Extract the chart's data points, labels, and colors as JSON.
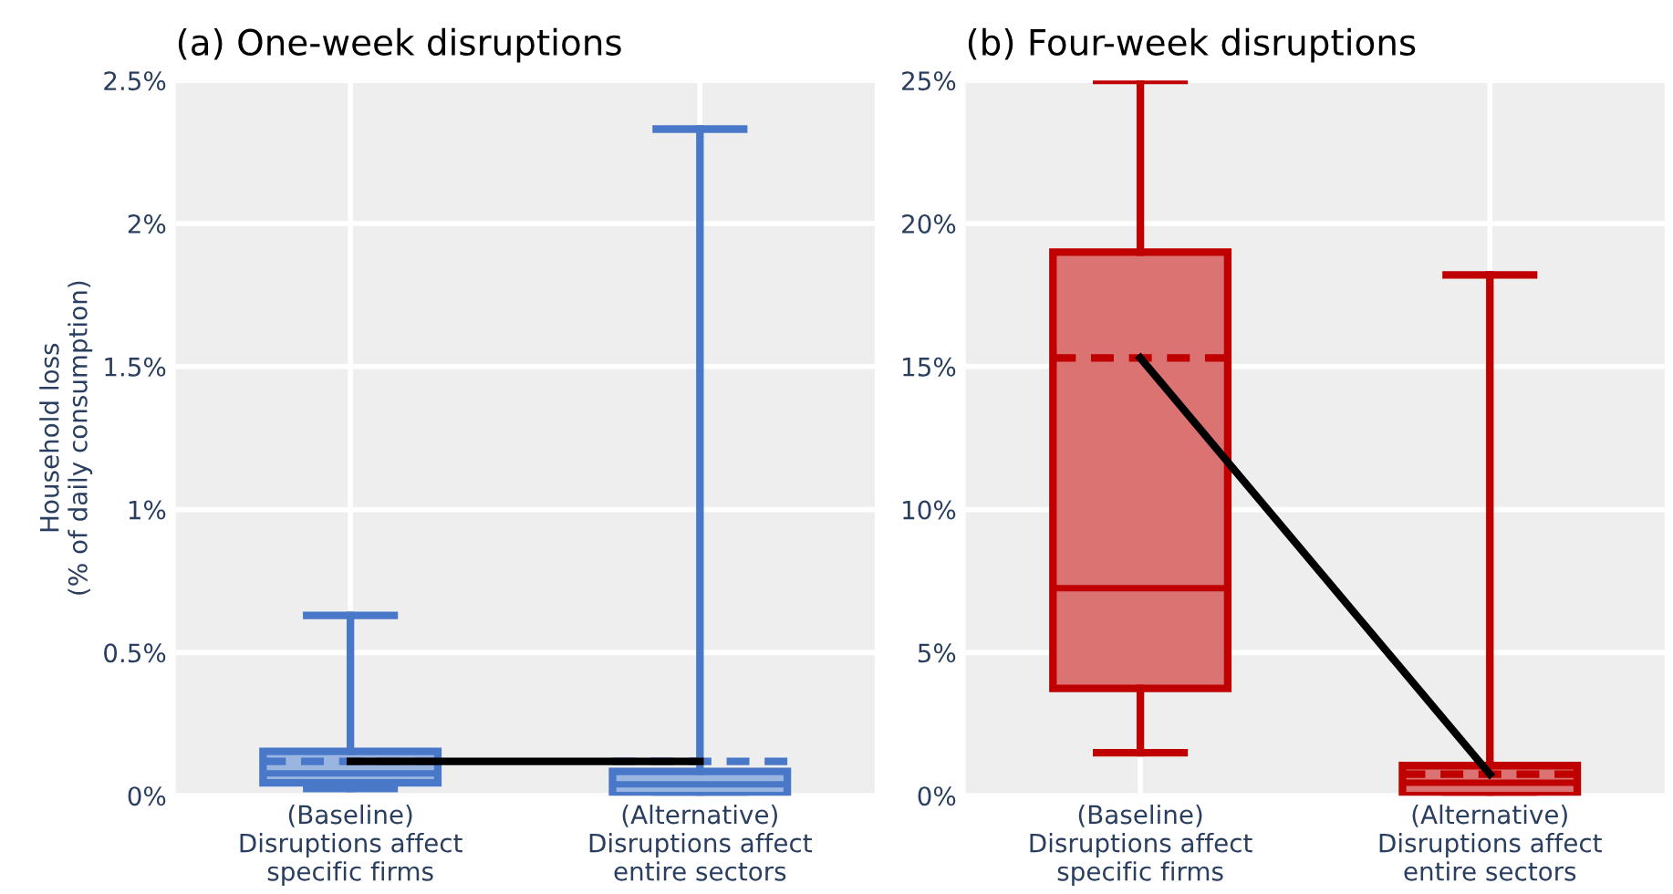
{
  "chart_data": [
    {
      "type": "box",
      "title": "(a) One-week disruptions",
      "ylabel": "Household loss\n(% of daily consumption)",
      "categories": [
        "(Baseline)\nDisruptions affect\nspecific firms",
        "(Alternative)\nDisruptions affect\nentire sectors"
      ],
      "boxes": [
        {
          "low": 0.025,
          "q1": 0.045,
          "median": 0.078,
          "q3": 0.155,
          "high": 0.63,
          "mean": 0.12
        },
        {
          "low": 0,
          "q1": 0,
          "median": 0.04,
          "q3": 0.085,
          "high": 2.33,
          "mean": 0.12
        }
      ],
      "colors": [
        "#4a78c8",
        "#4a78c8"
      ],
      "series": [
        {
          "type": "line",
          "x": [
            "(Baseline)\nDisruptions affect\nspecific firms",
            "(Alternative)\nDisruptions affect\nentire sectors"
          ],
          "values": [
            0.12,
            0.12
          ],
          "color": "#000000"
        }
      ],
      "ylim": [
        0,
        2.5
      ],
      "yticks": [
        {
          "value": 0,
          "label": "0%"
        },
        {
          "value": 0.5,
          "label": "0.5%"
        },
        {
          "value": 1,
          "label": "1%"
        },
        {
          "value": 1.5,
          "label": "1.5%"
        },
        {
          "value": 2,
          "label": "2%"
        },
        {
          "value": 2.5,
          "label": "2.5%"
        }
      ],
      "grid": true
    },
    {
      "type": "box",
      "title": "(b) Four-week disruptions",
      "categories": [
        "(Baseline)\nDisruptions affect\nspecific firms",
        "(Alternative)\nDisruptions affect\nentire sectors"
      ],
      "boxes": [
        {
          "low": 1.5,
          "q1": 3.75,
          "median": 7.25,
          "q3": 19.0,
          "high": 25,
          "mean": 15.3
        },
        {
          "low": 0,
          "q1": 0,
          "median": 0.45,
          "q3": 1.05,
          "high": 18.2,
          "mean": 0.75
        }
      ],
      "colors": [
        "#c00000",
        "#c00000"
      ],
      "series": [
        {
          "type": "line",
          "x": [
            "(Baseline)\nDisruptions affect\nspecific firms",
            "(Alternative)\nDisruptions affect\nentire sectors"
          ],
          "values": [
            15.3,
            0.75
          ],
          "color": "#000000"
        }
      ],
      "ylim": [
        0,
        25
      ],
      "yticks": [
        {
          "value": 0,
          "label": "0%"
        },
        {
          "value": 5,
          "label": "5%"
        },
        {
          "value": 10,
          "label": "10%"
        },
        {
          "value": 15,
          "label": "15%"
        },
        {
          "value": 20,
          "label": "20%"
        },
        {
          "value": 25,
          "label": "25%"
        }
      ],
      "grid": true
    }
  ]
}
